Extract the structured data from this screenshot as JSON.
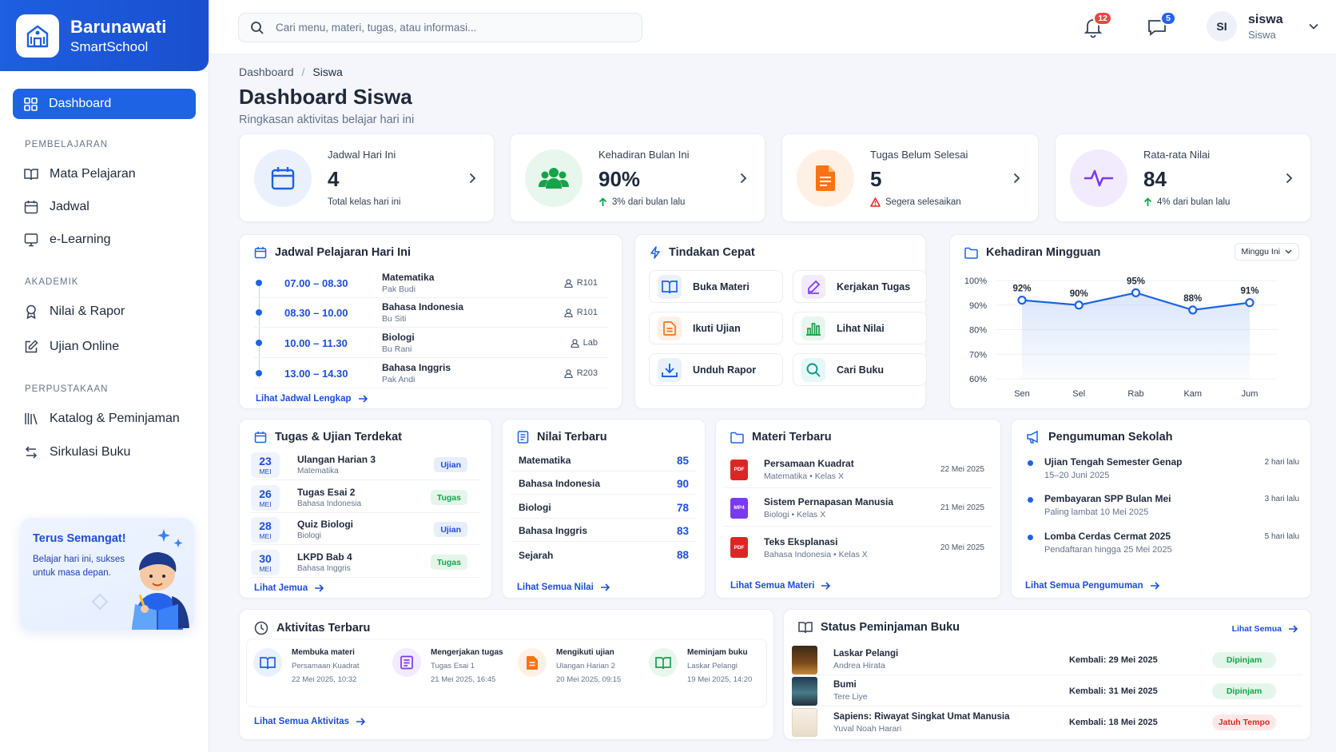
{
  "brand": {
    "name": "Barunawati",
    "sub": "SmartSchool"
  },
  "sidebar": {
    "dashboard": "Dashboard",
    "sections": [
      {
        "title": "PEMBELAJARAN",
        "items": [
          "Mata Pelajaran",
          "Jadwal",
          "e-Learning"
        ]
      },
      {
        "title": "AKADEMIK",
        "items": [
          "Nilai & Rapor",
          "Ujian Online"
        ]
      },
      {
        "title": "PERPUSTAKAAN",
        "items": [
          "Katalog & Peminjaman",
          "Sirkulasi Buku"
        ]
      }
    ],
    "motivation": {
      "title": "Terus Semangat!",
      "text": "Belajar hari ini, sukses untuk masa depan."
    }
  },
  "topbar": {
    "search_placeholder": "Cari menu, materi, tugas, atau informasi...",
    "notif_count": "12",
    "message_count": "5",
    "user_initials": "SI",
    "user_name": "siswa",
    "user_role": "Siswa"
  },
  "breadcrumb": {
    "root": "Dashboard",
    "sep": "/",
    "current": "Siswa"
  },
  "page": {
    "title": "Dashboard Siswa",
    "subtitle": "Ringkasan aktivitas belajar hari ini"
  },
  "stats": [
    {
      "label": "Jadwal Hari Ini",
      "value": "4",
      "note": "Total kelas hari ini",
      "icon": "calendar-icon",
      "color": "#1d63e3"
    },
    {
      "label": "Kehadiran Bulan Ini",
      "value": "90%",
      "note": "3% dari bulan lalu",
      "note_icon": "arrow-up-icon",
      "icon": "users-icon",
      "color": "#16a34a"
    },
    {
      "label": "Tugas Belum Selesai",
      "value": "5",
      "note": "Segera selesaikan",
      "note_icon": "warning-icon",
      "icon": "document-icon",
      "color": "#f97316"
    },
    {
      "label": "Rata-rata Nilai",
      "value": "84",
      "note": "4% dari bulan lalu",
      "note_icon": "arrow-up-icon",
      "icon": "activity-icon",
      "color": "#7c3aed"
    }
  ],
  "schedule": {
    "title": "Jadwal Pelajaran Hari Ini",
    "rows": [
      {
        "time": "07.00 – 08.30",
        "subject": "Matematika",
        "teacher": "Pak Budi",
        "room": "R101"
      },
      {
        "time": "08.30 – 10.00",
        "subject": "Bahasa Indonesia",
        "teacher": "Bu Siti",
        "room": "R101"
      },
      {
        "time": "10.00 – 11.30",
        "subject": "Biologi",
        "teacher": "Bu Rani",
        "room": "Lab"
      },
      {
        "time": "13.00 – 14.30",
        "subject": "Bahasa Inggris",
        "teacher": "Pak Andi",
        "room": "R203"
      }
    ],
    "link": "Lihat Jadwal Lengkap"
  },
  "quick_actions": {
    "title": "Tindakan Cepat",
    "items": [
      "Buka Materi",
      "Kerjakan Tugas",
      "Ikuti Ujian",
      "Lihat Nilai",
      "Unduh Rapor",
      "Cari Buku"
    ]
  },
  "attendance": {
    "title": "Kehadiran Mingguan",
    "filter": "Minggu Ini"
  },
  "chart_data": {
    "type": "line",
    "categories": [
      "Sen",
      "Sel",
      "Rab",
      "Kam",
      "Jum"
    ],
    "values": [
      92,
      90,
      95,
      88,
      91
    ],
    "data_labels": [
      "92%",
      "90%",
      "95%",
      "88%",
      "91%"
    ],
    "y_ticks": [
      "100%",
      "90%",
      "80%",
      "70%",
      "60%"
    ],
    "ylim": [
      60,
      100
    ],
    "grid": true,
    "color": "#1d63e3"
  },
  "tasks": {
    "title": "Tugas & Ujian Terdekat",
    "rows": [
      {
        "day": "23",
        "month": "MEI",
        "title": "Ulangan Harian 3",
        "subject": "Matematika",
        "type": "Ujian"
      },
      {
        "day": "26",
        "month": "MEI",
        "title": "Tugas Esai 2",
        "subject": "Bahasa Indonesia",
        "type": "Tugas"
      },
      {
        "day": "28",
        "month": "MEI",
        "title": "Quiz Biologi",
        "subject": "Biologi",
        "type": "Ujian"
      },
      {
        "day": "30",
        "month": "MEI",
        "title": "LKPD Bab 4",
        "subject": "Bahasa Inggris",
        "type": "Tugas"
      }
    ],
    "link": "Lihat Jemua"
  },
  "grades": {
    "title": "Nilai Terbaru",
    "rows": [
      {
        "subject": "Matematika",
        "score": "85"
      },
      {
        "subject": "Bahasa Indonesia",
        "score": "90"
      },
      {
        "subject": "Biologi",
        "score": "78"
      },
      {
        "subject": "Bahasa Inggris",
        "score": "83"
      },
      {
        "subject": "Sejarah",
        "score": "88"
      }
    ],
    "link": "Lihat Semua Nilai"
  },
  "materials": {
    "title": "Materi Terbaru",
    "rows": [
      {
        "title": "Persamaan Kuadrat",
        "meta": "Matematika • Kelas X",
        "date": "22 Mei 2025",
        "file": "PDF",
        "color": "#dc2626"
      },
      {
        "title": "Sistem Pernapasan Manusia",
        "meta": "Biologi • Kelas X",
        "date": "21 Mei 2025",
        "file": "MP4",
        "color": "#7c3aed"
      },
      {
        "title": "Teks Eksplanasi",
        "meta": "Bahasa Indonesia • Kelas X",
        "date": "20 Mei 2025",
        "file": "PDF",
        "color": "#dc2626"
      }
    ],
    "link": "Lihat Semua Materi"
  },
  "announcements": {
    "title": "Pengumuman Sekolah",
    "rows": [
      {
        "title": "Ujian Tengah Semester Genap",
        "sub": "15–20 Juni 2025",
        "time": "2 hari lalu"
      },
      {
        "title": "Pembayaran SPP Bulan Mei",
        "sub": "Paling lambat 10 Mei 2025",
        "time": "3 hari lalu"
      },
      {
        "title": "Lomba Cerdas Cermat 2025",
        "sub": "Pendaftaran hingga 25 Mei 2025",
        "time": "5 hari lalu"
      }
    ],
    "link": "Lihat Semua Pengumuman"
  },
  "activities": {
    "title": "Aktivitas Terbaru",
    "rows": [
      {
        "title": "Membuka materi",
        "sub": "Persamaan Kuadrat",
        "time": "22 Mei 2025, 10:32"
      },
      {
        "title": "Mengerjakan tugas",
        "sub": "Tugas Esai 1",
        "time": "21 Mei 2025, 16:45"
      },
      {
        "title": "Mengikuti ujian",
        "sub": "Ulangan Harian 2",
        "time": "20 Mei 2025, 09:15"
      },
      {
        "title": "Meminjam buku",
        "sub": "Laskar Pelangi",
        "time": "19 Mei 2025, 14:20"
      }
    ],
    "link": "Lihat Semua Aktivitas"
  },
  "loans": {
    "title": "Status Peminjaman Buku",
    "link": "Lihat Semua",
    "due_label": "Kembali:",
    "rows": [
      {
        "title": "Laskar Pelangi",
        "author": "Andrea Hirata",
        "due": "29 Mei 2025",
        "status": "Dipinjam"
      },
      {
        "title": "Bumi",
        "author": "Tere Liye",
        "due": "31 Mei 2025",
        "status": "Dipinjam"
      },
      {
        "title": "Sapiens: Riwayat Singkat Umat Manusia",
        "author": "Yuval Noah Harari",
        "due": "18 Mei 2025",
        "status": "Jatuh Tempo"
      }
    ]
  }
}
